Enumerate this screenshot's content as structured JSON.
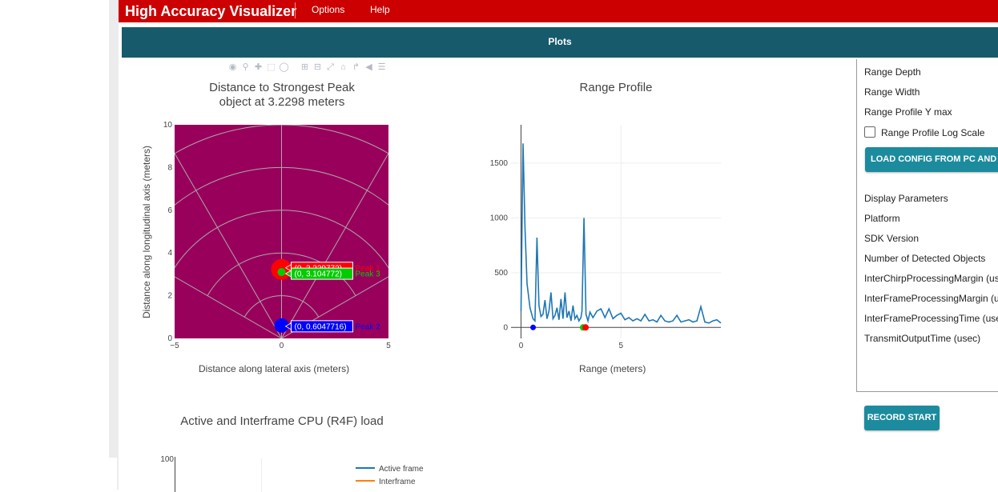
{
  "app": {
    "title": "High Accuracy Visualizer"
  },
  "menu": {
    "options": "Options",
    "help": "Help"
  },
  "tabs": {
    "plots": "Plots"
  },
  "modebar_icons": [
    "camera-icon",
    "zoom-icon",
    "pan-icon",
    "box-select-icon",
    "lasso-select-icon",
    "zoom-in-icon",
    "zoom-out-icon",
    "autoscale-icon",
    "reset-axes-icon",
    "spike-lines-icon",
    "hover-closest-icon",
    "hover-compare-icon"
  ],
  "colors": {
    "topbar": "#cc0000",
    "plots_bar": "#175a6b",
    "button": "#1c8b9e",
    "polar_bg": "#99005c",
    "peak1": "#ff0000",
    "peak2": "#0000ff",
    "peak3": "#00cc00",
    "range_line": "#1f77b4",
    "interframe": "#ff7f0e"
  },
  "charts": {
    "distance": {
      "title": "Distance to Strongest Peak",
      "subtitle": "object at 3.2298 meters",
      "xlabel": "Distance along lateral axis (meters)",
      "ylabel": "Distance along longitudinal axis (meters)"
    },
    "range": {
      "title": "Range Profile",
      "xlabel": "Range (meters)"
    },
    "cpu": {
      "title": "Active and Interframe CPU (R4F) load",
      "ytick_top": "100",
      "legend": [
        "Active frame",
        "Interframe"
      ]
    }
  },
  "chart_data": [
    {
      "type": "scatter",
      "title": "Distance to Strongest Peak",
      "subtitle": "object at 3.2298 meters",
      "xlabel": "Distance along lateral axis (meters)",
      "ylabel": "Distance along longitudinal axis (meters)",
      "xlim": [
        -5,
        5
      ],
      "ylim": [
        0,
        10
      ],
      "xticks": [
        "−5",
        "0",
        "5"
      ],
      "yticks": [
        "0",
        "2",
        "4",
        "6",
        "8",
        "10"
      ],
      "points": [
        {
          "x": 0,
          "y": 3.229772,
          "label": "(0, 3.229772)",
          "name": "Peak 1",
          "color": "#ff0000"
        },
        {
          "x": 0,
          "y": 0.6047716,
          "label": "(0, 0.6047716)",
          "name": "Peak 2",
          "color": "#0000ff"
        },
        {
          "x": 0,
          "y": 3.104772,
          "label": "(0, 3.104772)",
          "name": "Peak 3",
          "color": "#00cc00"
        }
      ]
    },
    {
      "type": "line",
      "title": "Range Profile",
      "xlabel": "Range (meters)",
      "xlim": [
        -0.5,
        10
      ],
      "ylim": [
        -100,
        1850
      ],
      "xticks": [
        "0",
        "5"
      ],
      "yticks": [
        "0",
        "500",
        "1000",
        "1500"
      ],
      "x": [
        0,
        0.1,
        0.2,
        0.3,
        0.45,
        0.6,
        0.7,
        0.8,
        0.9,
        1.0,
        1.1,
        1.2,
        1.3,
        1.4,
        1.5,
        1.6,
        1.7,
        1.8,
        1.9,
        2.0,
        2.1,
        2.2,
        2.3,
        2.4,
        2.5,
        2.6,
        2.7,
        2.8,
        2.9,
        3.0,
        3.05,
        3.15,
        3.25,
        3.35,
        3.45,
        3.6,
        3.8,
        4.0,
        4.2,
        4.4,
        4.6,
        4.8,
        5.0,
        5.2,
        5.4,
        5.6,
        5.8,
        6.0,
        6.2,
        6.4,
        6.6,
        6.8,
        7.0,
        7.2,
        7.4,
        7.6,
        7.8,
        8.0,
        8.2,
        8.4,
        8.6,
        8.8,
        9.0,
        9.2,
        9.4,
        9.6,
        9.8,
        10.0
      ],
      "y": [
        150,
        1680,
        900,
        400,
        180,
        80,
        60,
        820,
        200,
        100,
        120,
        250,
        80,
        150,
        320,
        80,
        110,
        180,
        70,
        260,
        80,
        320,
        90,
        150,
        60,
        200,
        80,
        110,
        60,
        90,
        150,
        1000,
        120,
        60,
        140,
        90,
        150,
        170,
        90,
        170,
        80,
        110,
        130,
        70,
        90,
        60,
        80,
        60,
        120,
        60,
        70,
        50,
        110,
        60,
        50,
        60,
        110,
        50,
        60,
        70,
        50,
        60,
        190,
        50,
        40,
        60,
        70,
        40
      ],
      "markers": [
        {
          "x": 0.6047716,
          "y": 0,
          "color": "#0000ff"
        },
        {
          "x": 3.104772,
          "y": 0,
          "color": "#00cc00"
        },
        {
          "x": 3.229772,
          "y": 0,
          "color": "#ff0000"
        }
      ]
    },
    {
      "type": "line",
      "title": "Active and Interframe CPU (R4F) load",
      "yticks": [
        "100"
      ],
      "series": [
        {
          "name": "Active frame",
          "values": []
        },
        {
          "name": "Interframe",
          "values": []
        }
      ]
    }
  ],
  "settings_panel": {
    "range_depth": "Range Depth",
    "range_width": "Range Width",
    "range_profile_ymax": "Range Profile Y max",
    "log_scale_label": "Range Profile Log Scale",
    "log_scale_checked": false,
    "load_button": "LOAD CONFIG FROM PC AND SEND",
    "display_parameters": "Display Parameters",
    "platform": "Platform",
    "sdk_version": "SDK Version",
    "num_objects": "Number of Detected Objects",
    "inter_chirp_margin": "InterChirpProcessingMargin (usec)",
    "inter_frame_margin": "InterFrameProcessingMargin (usec)",
    "inter_frame_time": "InterFrameProcessingTime (usec)",
    "transmit_time": "TransmitOutputTime (usec)"
  },
  "record_button": "RECORD START"
}
